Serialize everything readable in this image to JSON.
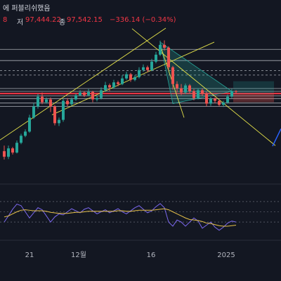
{
  "header": {
    "title_fragment": "에 퍼블리쉬했음",
    "ohlc_line": {
      "open_fragment": "8",
      "low_label": "저",
      "low_value": "97,444.22",
      "close_label": "종",
      "close_value": "97,542.15",
      "change": "−336.14 (−0.34%)"
    }
  },
  "x_axis_ticks": [
    "21",
    "12월",
    "16",
    "2025"
  ],
  "colors": {
    "background": "#131722",
    "up": "#26a69a",
    "down": "#ef5350",
    "trend_line": "#e6e34a",
    "level_line": "#d1d4dc",
    "red_level": "#f23645",
    "oscillator": "#7b68ee",
    "oscillator_ma": "#e6c04a",
    "projection": "#2962ff"
  },
  "chart_data": {
    "type": "candlestick",
    "title": "",
    "xlabel": "",
    "ylabel": "",
    "x_tick_labels": [
      "21",
      "12월",
      "16",
      "2025"
    ],
    "last_price": 97542.15,
    "last_low": 97444.22,
    "last_change": -336.14,
    "last_change_pct": -0.34,
    "candles_ohlc": [
      [
        400,
        380,
        420,
        370
      ],
      [
        380,
        410,
        420,
        372
      ],
      [
        410,
        395,
        415,
        388
      ],
      [
        395,
        430,
        438,
        392
      ],
      [
        430,
        455,
        462,
        425
      ],
      [
        455,
        470,
        478,
        450
      ],
      [
        470,
        520,
        530,
        466
      ],
      [
        520,
        560,
        572,
        515
      ],
      [
        560,
        595,
        605,
        552
      ],
      [
        595,
        575,
        610,
        568
      ],
      [
        575,
        585,
        592,
        570
      ],
      [
        585,
        560,
        592,
        540
      ],
      [
        560,
        500,
        565,
        492
      ],
      [
        500,
        512,
        520,
        490
      ],
      [
        512,
        580,
        588,
        505
      ],
      [
        580,
        568,
        590,
        560
      ],
      [
        568,
        585,
        592,
        562
      ],
      [
        585,
        600,
        606,
        580
      ],
      [
        600,
        610,
        618,
        596
      ],
      [
        610,
        600,
        615,
        594
      ],
      [
        600,
        612,
        622,
        596
      ],
      [
        612,
        585,
        616,
        575
      ],
      [
        585,
        590,
        598,
        578
      ],
      [
        590,
        618,
        628,
        585
      ],
      [
        618,
        636,
        648,
        612
      ],
      [
        636,
        628,
        642,
        615
      ],
      [
        628,
        646,
        655,
        622
      ],
      [
        646,
        640,
        652,
        632
      ],
      [
        640,
        660,
        672,
        636
      ],
      [
        660,
        675,
        684,
        655
      ],
      [
        675,
        655,
        680,
        648
      ],
      [
        655,
        665,
        672,
        650
      ],
      [
        665,
        690,
        700,
        660
      ],
      [
        690,
        700,
        710,
        684
      ],
      [
        700,
        690,
        706,
        682
      ],
      [
        690,
        720,
        730,
        686
      ],
      [
        720,
        745,
        755,
        714
      ],
      [
        745,
        780,
        795,
        740
      ],
      [
        780,
        770,
        796,
        760
      ],
      [
        770,
        700,
        775,
        690
      ],
      [
        700,
        640,
        705,
        620
      ],
      [
        640,
        625,
        650,
        610
      ],
      [
        625,
        610,
        640,
        600
      ],
      [
        610,
        635,
        642,
        604
      ],
      [
        635,
        615,
        640,
        608
      ],
      [
        615,
        590,
        622,
        582
      ],
      [
        590,
        618,
        625,
        585
      ],
      [
        618,
        605,
        624,
        598
      ],
      [
        605,
        570,
        612,
        560
      ],
      [
        570,
        588,
        594,
        562
      ],
      [
        588,
        580,
        592,
        572
      ],
      [
        580,
        566,
        584,
        560
      ],
      [
        566,
        574,
        580,
        558
      ],
      [
        574,
        595,
        602,
        570
      ],
      [
        595,
        615,
        624,
        590
      ],
      [
        615,
        612,
        618,
        606
      ]
    ],
    "horizontal_levels": [
      764,
      724,
      688,
      672,
      624,
      614,
      598,
      588,
      572,
      560
    ],
    "red_level": 606,
    "oscillator": {
      "values": [
        0.3,
        0.42,
        0.55,
        0.65,
        0.62,
        0.5,
        0.38,
        0.48,
        0.58,
        0.54,
        0.42,
        0.3,
        0.4,
        0.46,
        0.44,
        0.5,
        0.56,
        0.52,
        0.48,
        0.55,
        0.58,
        0.52,
        0.46,
        0.5,
        0.54,
        0.48,
        0.52,
        0.56,
        0.5,
        0.46,
        0.52,
        0.58,
        0.62,
        0.55,
        0.48,
        0.52,
        0.6,
        0.66,
        0.58,
        0.3,
        0.22,
        0.34,
        0.3,
        0.22,
        0.3,
        0.38,
        0.32,
        0.18,
        0.24,
        0.3,
        0.2,
        0.14,
        0.2,
        0.28,
        0.32,
        0.3
      ],
      "ma_values": [
        0.4,
        0.42,
        0.46,
        0.5,
        0.53,
        0.54,
        0.53,
        0.52,
        0.52,
        0.52,
        0.51,
        0.49,
        0.48,
        0.47,
        0.47,
        0.47,
        0.48,
        0.49,
        0.49,
        0.5,
        0.51,
        0.51,
        0.51,
        0.51,
        0.51,
        0.51,
        0.51,
        0.52,
        0.52,
        0.51,
        0.51,
        0.52,
        0.53,
        0.53,
        0.53,
        0.53,
        0.54,
        0.55,
        0.56,
        0.54,
        0.5,
        0.46,
        0.42,
        0.38,
        0.35,
        0.34,
        0.33,
        0.31,
        0.28,
        0.27,
        0.25,
        0.23,
        0.22,
        0.22,
        0.23,
        0.24
      ]
    }
  }
}
